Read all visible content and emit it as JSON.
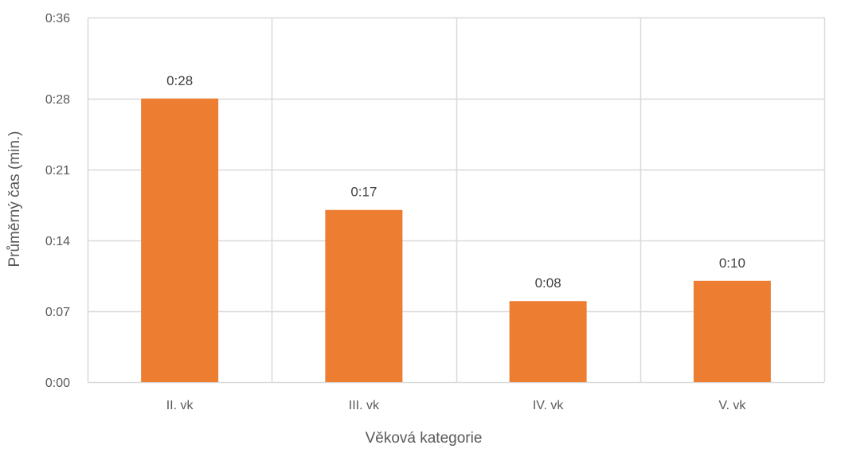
{
  "chart_data": {
    "type": "bar",
    "title": "",
    "xlabel": "Věková kategorie",
    "ylabel": "Průměrný čas (min.)",
    "categories": [
      "II. vk",
      "III. vk",
      "IV. vk",
      "V. vk"
    ],
    "series": [
      {
        "values": [
          28,
          17,
          8,
          10
        ],
        "labels": [
          "0:28",
          "0:17",
          "0:08",
          "0:10"
        ]
      }
    ],
    "ylim": [
      0,
      36
    ],
    "yticks": [
      0,
      7,
      14,
      21,
      28,
      36
    ],
    "ytick_labels": [
      "0:00",
      "0:07",
      "0:14",
      "0:21",
      "0:28",
      "0:36"
    ],
    "grid": true,
    "legend": "none",
    "colors": {
      "bar": "#ED7D31",
      "grid": "#D9D9D9"
    }
  }
}
